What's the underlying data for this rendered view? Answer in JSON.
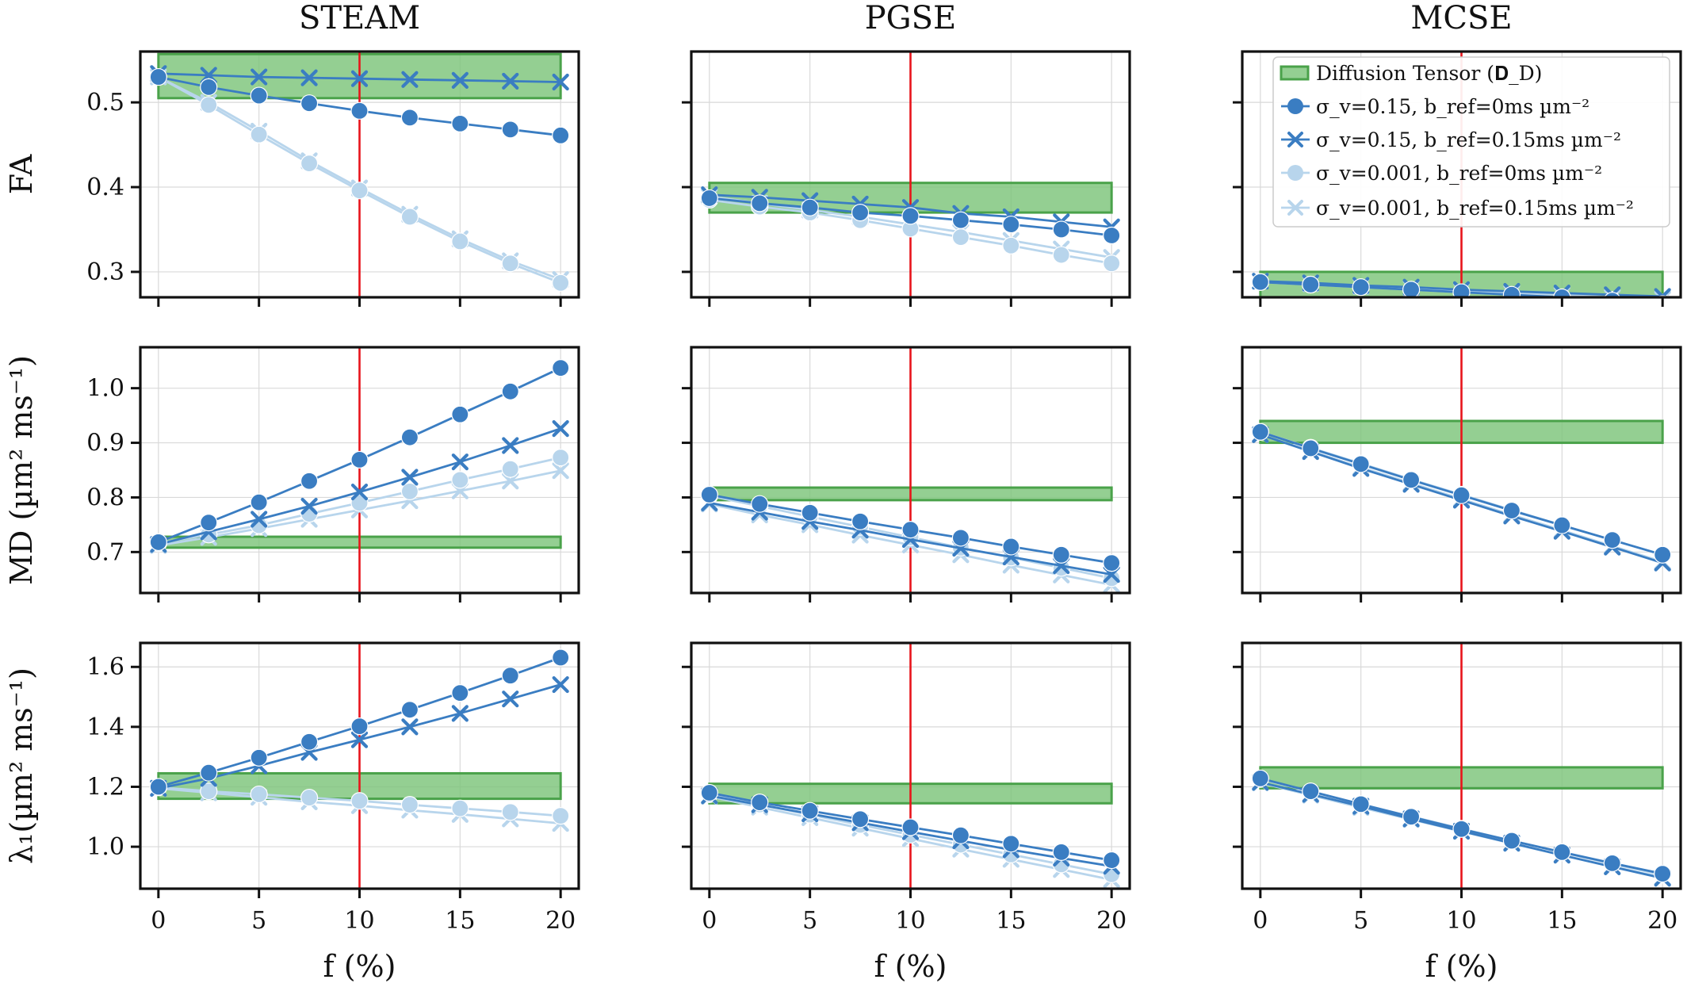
{
  "chart_data": {
    "type": "line",
    "columns": [
      "STEAM",
      "PGSE",
      "MCSE"
    ],
    "rows": [
      {
        "ylabel": "FA",
        "ylim": [
          0.27,
          0.56
        ],
        "yticks": [
          0.3,
          0.4,
          0.5
        ]
      },
      {
        "ylabel": "MD (µm² ms⁻¹)",
        "ylim": [
          0.625,
          1.075
        ],
        "yticks": [
          0.7,
          0.8,
          0.9,
          1.0
        ]
      },
      {
        "ylabel": "λ₁(µm² ms⁻¹)",
        "ylim": [
          0.86,
          1.68
        ],
        "yticks": [
          1.0,
          1.2,
          1.4,
          1.6
        ]
      }
    ],
    "xlabel": "f (%)",
    "xlim": [
      -0.9,
      20.9
    ],
    "xticks": [
      0,
      5,
      10,
      15,
      20
    ],
    "x": [
      0,
      2.5,
      5,
      7.5,
      10,
      12.5,
      15,
      17.5,
      20
    ],
    "vline_x": 10,
    "legend": {
      "placement": "upper-right of MCSE FA panel",
      "band_label": "Diffusion Tensor (𝐃_D)",
      "series_labels": [
        "σ_v=0.15, b_ref=0ms µm⁻²",
        "σ_v=0.15, b_ref=0.15ms µm⁻²",
        "σ_v=0.001, b_ref=0ms µm⁻²",
        "σ_v=0.001, b_ref=0.15ms µm⁻²"
      ]
    },
    "series_style": [
      {
        "color": "#3a7dc2",
        "marker": "circle"
      },
      {
        "color": "#3a7dc2",
        "marker": "x"
      },
      {
        "color": "#b8d5ec",
        "marker": "circle"
      },
      {
        "color": "#b8d5ec",
        "marker": "x"
      }
    ],
    "band_color": "#7cc47a",
    "vline_color": "#e8141b",
    "grid": true,
    "panels": [
      [
        {
          "band": [
            0.505,
            0.557
          ],
          "series": [
            [
              0.53,
              0.518,
              0.508,
              0.499,
              0.49,
              0.482,
              0.475,
              0.468,
              0.461
            ],
            [
              0.534,
              0.532,
              0.53,
              0.529,
              0.528,
              0.527,
              0.526,
              0.525,
              0.524
            ],
            [
              0.53,
              0.497,
              0.462,
              0.428,
              0.396,
              0.365,
              0.336,
              0.31,
              0.287
            ],
            [
              0.53,
              0.5,
              0.466,
              0.431,
              0.399,
              0.368,
              0.339,
              0.313,
              0.291
            ]
          ]
        },
        {
          "band": [
            0.37,
            0.405
          ],
          "series": [
            [
              0.387,
              0.381,
              0.376,
              0.37,
              0.366,
              0.361,
              0.356,
              0.35,
              0.343
            ],
            [
              0.391,
              0.388,
              0.384,
              0.38,
              0.376,
              0.369,
              0.365,
              0.359,
              0.353
            ],
            [
              0.385,
              0.377,
              0.37,
              0.361,
              0.351,
              0.341,
              0.331,
              0.32,
              0.31
            ],
            [
              0.389,
              0.381,
              0.373,
              0.365,
              0.356,
              0.347,
              0.337,
              0.327,
              0.317
            ]
          ]
        },
        {
          "band": [
            0.268,
            0.3
          ],
          "series": [
            [
              0.288,
              0.285,
              0.282,
              0.279,
              0.276,
              0.273,
              0.27,
              0.266,
              0.262
            ],
            [
              0.289,
              0.287,
              0.284,
              0.282,
              0.279,
              0.277,
              0.275,
              0.273,
              0.271
            ],
            [
              0.288,
              0.285,
              0.282,
              0.279,
              0.276,
              0.273,
              0.27,
              0.267,
              0.264
            ],
            [
              0.289,
              0.286,
              0.283,
              0.281,
              0.278,
              0.275,
              0.273,
              0.27,
              0.268
            ]
          ]
        }
      ],
      [
        {
          "band": [
            0.708,
            0.728
          ],
          "series": [
            [
              0.718,
              0.754,
              0.791,
              0.83,
              0.869,
              0.91,
              0.952,
              0.994,
              1.037
            ],
            [
              0.714,
              0.737,
              0.76,
              0.784,
              0.81,
              0.837,
              0.865,
              0.895,
              0.926
            ],
            [
              0.716,
              0.732,
              0.749,
              0.77,
              0.79,
              0.811,
              0.832,
              0.852,
              0.873
            ],
            [
              0.712,
              0.727,
              0.743,
              0.76,
              0.777,
              0.794,
              0.812,
              0.83,
              0.849
            ]
          ]
        },
        {
          "band": [
            0.795,
            0.818
          ],
          "series": [
            [
              0.805,
              0.788,
              0.772,
              0.756,
              0.741,
              0.726,
              0.71,
              0.695,
              0.68
            ],
            [
              0.79,
              0.773,
              0.756,
              0.74,
              0.723,
              0.707,
              0.691,
              0.675,
              0.659
            ],
            [
              0.803,
              0.784,
              0.765,
              0.746,
              0.727,
              0.708,
              0.69,
              0.671,
              0.652
            ],
            [
              0.788,
              0.768,
              0.75,
              0.731,
              0.713,
              0.695,
              0.676,
              0.658,
              0.64
            ]
          ]
        },
        {
          "band": [
            0.9,
            0.94
          ],
          "series": [
            [
              0.92,
              0.89,
              0.861,
              0.832,
              0.804,
              0.776,
              0.749,
              0.722,
              0.695
            ],
            [
              0.915,
              0.884,
              0.853,
              0.824,
              0.795,
              0.766,
              0.738,
              0.709,
              0.68
            ],
            [
              0.92,
              0.891,
              0.862,
              0.833,
              0.805,
              0.777,
              0.749,
              0.722,
              0.695
            ],
            [
              0.915,
              0.885,
              0.855,
              0.826,
              0.797,
              0.768,
              0.74,
              0.711,
              0.682
            ]
          ]
        }
      ],
      [
        {
          "band": [
            1.16,
            1.245
          ],
          "series": [
            [
              1.2,
              1.247,
              1.297,
              1.35,
              1.402,
              1.457,
              1.513,
              1.571,
              1.631
            ],
            [
              1.195,
              1.228,
              1.27,
              1.315,
              1.357,
              1.4,
              1.445,
              1.493,
              1.541
            ],
            [
              1.198,
              1.185,
              1.175,
              1.164,
              1.153,
              1.14,
              1.128,
              1.116,
              1.103
            ],
            [
              1.195,
              1.18,
              1.165,
              1.15,
              1.137,
              1.122,
              1.108,
              1.093,
              1.078
            ]
          ]
        },
        {
          "band": [
            1.145,
            1.21
          ],
          "series": [
            [
              1.18,
              1.148,
              1.12,
              1.092,
              1.065,
              1.038,
              1.01,
              0.982,
              0.955
            ],
            [
              1.17,
              1.14,
              1.11,
              1.08,
              1.05,
              1.02,
              0.99,
              0.962,
              0.935
            ],
            [
              1.175,
              1.141,
              1.107,
              1.073,
              1.04,
              1.007,
              0.974,
              0.941,
              0.908
            ],
            [
              1.168,
              1.132,
              1.097,
              1.062,
              1.027,
              0.992,
              0.958,
              0.924,
              0.89
            ]
          ]
        },
        {
          "band": [
            1.195,
            1.265
          ],
          "series": [
            [
              1.228,
              1.185,
              1.142,
              1.1,
              1.059,
              1.02,
              0.982,
              0.945,
              0.91
            ],
            [
              1.215,
              1.175,
              1.135,
              1.093,
              1.052,
              1.012,
              0.972,
              0.933,
              0.895
            ],
            [
              1.226,
              1.184,
              1.142,
              1.101,
              1.06,
              1.02,
              0.981,
              0.943,
              0.906
            ],
            [
              1.213,
              1.172,
              1.131,
              1.091,
              1.051,
              1.011,
              0.972,
              0.934,
              0.897
            ]
          ]
        }
      ]
    ]
  }
}
